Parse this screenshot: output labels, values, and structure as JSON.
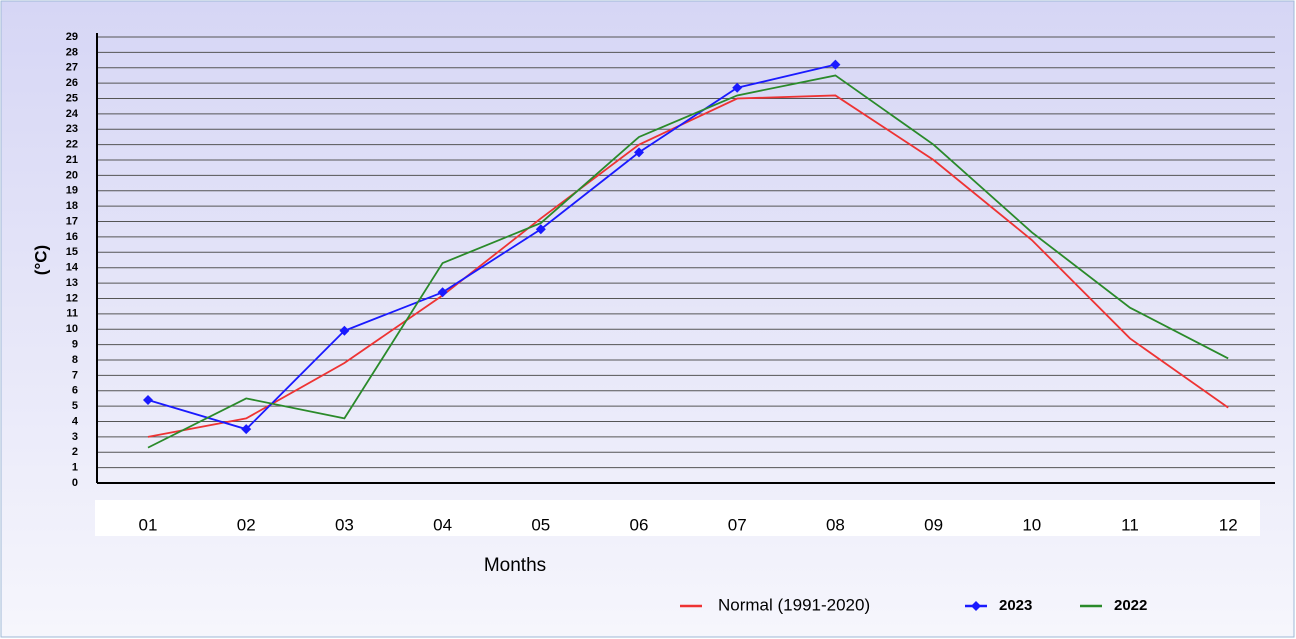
{
  "chart_data": {
    "type": "line",
    "y_label": "(°C)",
    "x_label": "Months",
    "categories": [
      "01",
      "02",
      "03",
      "04",
      "05",
      "06",
      "07",
      "08",
      "09",
      "10",
      "11",
      "12"
    ],
    "series": [
      {
        "name": "Normal (1991-2020)",
        "color": "#ee3333",
        "marker": false,
        "values": [
          3.0,
          4.2,
          7.8,
          12.2,
          17.2,
          22.0,
          25.0,
          25.2,
          21.0,
          15.8,
          9.4,
          4.9
        ]
      },
      {
        "name": "2023",
        "color": "#1a1aff",
        "marker": true,
        "values": [
          5.4,
          3.5,
          9.9,
          12.4,
          16.5,
          21.5,
          25.7,
          27.2,
          null,
          null,
          null,
          null
        ]
      },
      {
        "name": "2022",
        "color": "#2a8a2a",
        "marker": false,
        "values": [
          2.3,
          5.5,
          4.2,
          14.3,
          16.9,
          22.5,
          25.2,
          26.5,
          22.0,
          16.3,
          11.4,
          8.1
        ]
      }
    ],
    "ylim": [
      0,
      29
    ],
    "yticks": [
      0,
      1,
      2,
      3,
      4,
      5,
      6,
      7,
      8,
      9,
      10,
      11,
      12,
      13,
      14,
      15,
      16,
      17,
      18,
      19,
      20,
      21,
      22,
      23,
      24,
      25,
      26,
      27,
      28,
      29
    ],
    "grid": true,
    "legend": "bottom-right"
  }
}
